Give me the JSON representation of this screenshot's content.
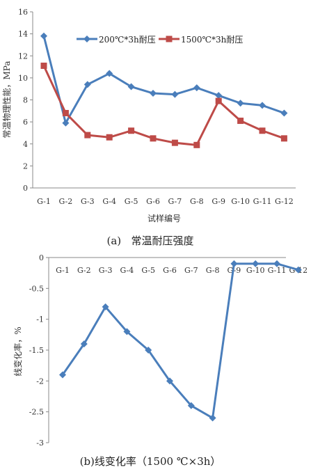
{
  "colors": {
    "series1": "#4A7EBB",
    "series2": "#BE4B48",
    "axis": "#888888",
    "text": "#333333"
  },
  "chart_data": [
    {
      "type": "line",
      "caption": "(a)   常温耐压强度",
      "xlabel": "试样编号",
      "ylabel": "常温物理性能，MPa",
      "categories": [
        "G-1",
        "G-2",
        "G-3",
        "G-4",
        "G-5",
        "G-6",
        "G-7",
        "G-8",
        "G-9",
        "G-10",
        "G-11",
        "G-12"
      ],
      "ylim": [
        0,
        16
      ],
      "yticks": [
        0,
        2,
        4,
        6,
        8,
        10,
        12,
        14,
        16
      ],
      "grid": false,
      "legend_position": "top",
      "series": [
        {
          "name": "200℃*3h耐压",
          "marker": "diamond",
          "color": "#4A7EBB",
          "values": [
            13.8,
            5.9,
            9.4,
            10.4,
            9.2,
            8.6,
            8.5,
            9.1,
            8.4,
            7.7,
            7.5,
            6.8
          ]
        },
        {
          "name": "1500℃*3h耐压",
          "marker": "square",
          "color": "#BE4B48",
          "values": [
            11.1,
            6.8,
            4.8,
            4.6,
            5.2,
            4.5,
            4.1,
            3.9,
            7.9,
            6.1,
            5.2,
            4.5
          ]
        }
      ]
    },
    {
      "type": "line",
      "caption": "(b)线变化率（1500 ℃×3h）",
      "xlabel": "",
      "ylabel": "线变化率，%",
      "categories": [
        "G-1",
        "G-2",
        "G-3",
        "G-4",
        "G-5",
        "G-6",
        "G-7",
        "G-8",
        "G-9",
        "G-10",
        "G-11",
        "G-12"
      ],
      "ylim": [
        -3,
        0
      ],
      "yticks": [
        0,
        -0.5,
        -1,
        -1.5,
        -2,
        -2.5,
        -3
      ],
      "grid": false,
      "series": [
        {
          "marker": "diamond",
          "color": "#4A7EBB",
          "values": [
            -1.9,
            -1.4,
            -0.8,
            -1.2,
            -1.5,
            -2.0,
            -2.4,
            -2.6,
            -0.1,
            -0.1,
            -0.1,
            -0.2
          ]
        }
      ]
    }
  ]
}
